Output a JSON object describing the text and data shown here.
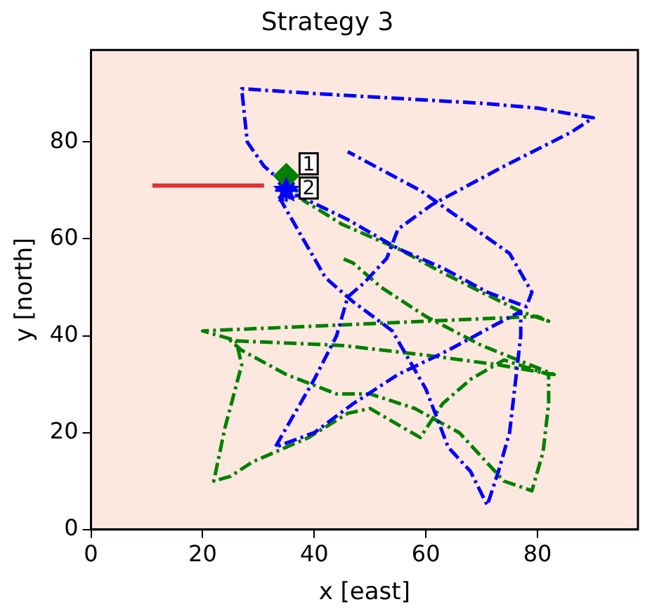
{
  "chart_data": {
    "type": "line",
    "title": "Strategy 3",
    "xlabel": "x [east]",
    "ylabel": "y [north]",
    "xlim": [
      0,
      98
    ],
    "ylim": [
      0,
      99
    ],
    "xticks": [
      0,
      20,
      40,
      60,
      80
    ],
    "yticks": [
      0,
      20,
      40,
      60,
      80
    ],
    "grid": false,
    "legend": false,
    "series": [
      {
        "type": "line",
        "color": "#0000ff",
        "line_style": "dashed",
        "marker": "none",
        "x": [
          35,
          31,
          28,
          27,
          40,
          55,
          70,
          80,
          90,
          86,
          74,
          61,
          55,
          53,
          49,
          46,
          44,
          40,
          37,
          33,
          40,
          47,
          55,
          64,
          72,
          77,
          77,
          76,
          75,
          73,
          71,
          68,
          64,
          60,
          54,
          47,
          42,
          38,
          34,
          37,
          46,
          55,
          63,
          71,
          78,
          79,
          75,
          59,
          46
        ],
        "values": [
          71,
          75,
          80,
          91,
          90,
          89,
          88,
          87,
          85,
          82,
          75,
          67,
          62,
          56,
          51,
          48,
          40,
          31,
          25,
          17,
          20,
          26,
          32,
          37,
          42,
          45,
          40,
          30,
          20,
          12,
          5,
          12,
          17,
          29,
          41,
          47,
          52,
          60,
          68,
          69,
          64,
          58,
          54,
          49,
          46,
          49,
          57,
          70,
          78
        ]
      },
      {
        "type": "line",
        "color": "#008000",
        "line_style": "dashed",
        "marker": "none",
        "x": [
          35,
          38,
          45,
          55,
          63,
          70,
          77,
          82,
          80,
          60,
          40,
          20,
          26,
          27,
          24,
          22,
          25,
          29,
          39,
          46,
          50,
          59,
          63,
          68,
          74,
          82,
          82,
          81,
          79,
          74,
          66,
          58,
          50,
          44,
          35,
          27,
          25,
          45,
          60,
          73,
          83,
          70,
          60,
          52,
          47,
          45
        ],
        "values": [
          73,
          68,
          63,
          58,
          53,
          49,
          45,
          43,
          44,
          43,
          42,
          41,
          39,
          34,
          21,
          10,
          11,
          14,
          19,
          24,
          25,
          19,
          26,
          31,
          35,
          32,
          26,
          16,
          8,
          10,
          20,
          25,
          28,
          28,
          32,
          37,
          39,
          38,
          36,
          34,
          32,
          38,
          44,
          50,
          55,
          56
        ]
      },
      {
        "type": "line",
        "color": "#e03030",
        "line_style": "solid",
        "marker": "none",
        "x": [
          11,
          31
        ],
        "values": [
          71,
          71
        ]
      },
      {
        "type": "scatter",
        "color": "#008000",
        "marker": "diamond",
        "x": [
          35
        ],
        "values": [
          73
        ]
      },
      {
        "type": "scatter",
        "color": "#0000ff",
        "marker": "star",
        "x": [
          35
        ],
        "values": [
          70
        ]
      }
    ],
    "annotations": [
      {
        "text": "1",
        "x": 39,
        "y": 75.5
      },
      {
        "text": "2",
        "x": 39,
        "y": 70.5
      }
    ]
  }
}
